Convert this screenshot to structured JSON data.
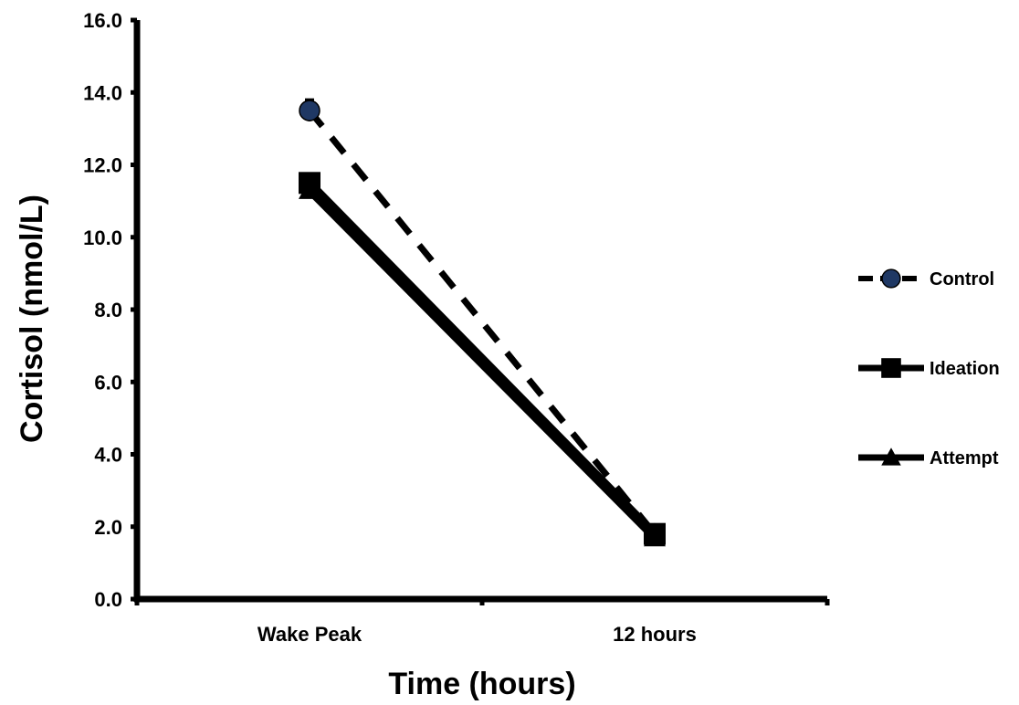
{
  "chart_data": {
    "type": "line",
    "xlabel": "Time (hours)",
    "ylabel": "Cortisol (nmol/L)",
    "categories": [
      "Wake Peak",
      "12 hours"
    ],
    "ylim": [
      0,
      16
    ],
    "yticks": [
      "0.0",
      "2.0",
      "4.0",
      "6.0",
      "8.0",
      "10.0",
      "12.0",
      "14.0",
      "16.0"
    ],
    "grid": false,
    "legend_position": "right",
    "series": [
      {
        "name": "Control",
        "values": [
          13.5,
          1.8
        ],
        "error": [
          0.3,
          0.1
        ],
        "line_style": "dashed",
        "marker": "circle",
        "marker_color": "#1f3864"
      },
      {
        "name": "Ideation",
        "values": [
          11.5,
          1.8
        ],
        "error": [
          0.2,
          0.1
        ],
        "line_style": "solid",
        "marker": "square",
        "marker_color": "#000000"
      },
      {
        "name": "Attempt",
        "values": [
          11.3,
          1.7
        ],
        "error": [
          0.2,
          0.1
        ],
        "line_style": "solid",
        "marker": "triangle",
        "marker_color": "#000000"
      }
    ]
  }
}
